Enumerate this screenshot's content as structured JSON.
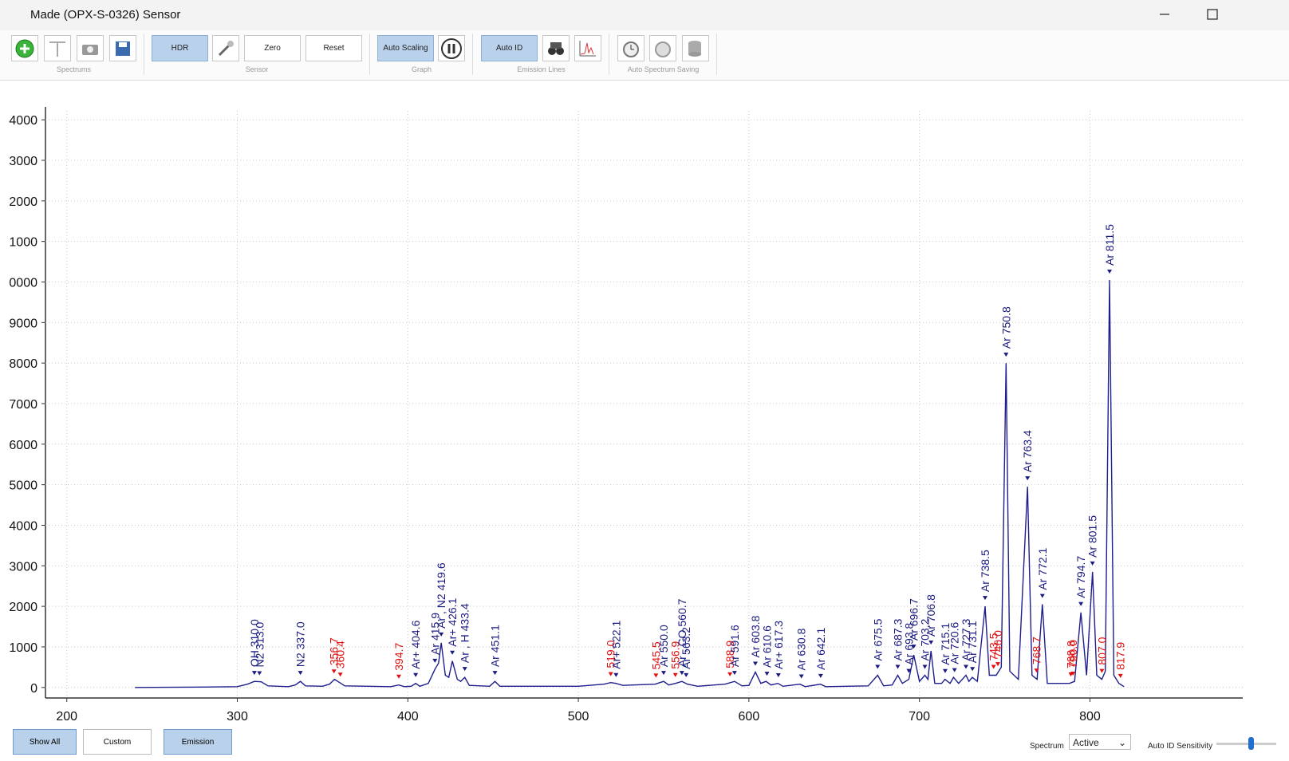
{
  "window": {
    "title": "Made (OPX-S-0326) Sensor"
  },
  "toolbar": {
    "buttons": [
      "HDR",
      "Zero",
      "Reset",
      "Auto Scaling",
      "Auto ID"
    ],
    "groups": [
      "Spectrums",
      "Sensor",
      "Graph",
      "Emission Lines",
      "Auto Spectrum Saving"
    ]
  },
  "bottom": {
    "buttons": [
      "Show All",
      "Custom",
      "Emission"
    ],
    "spectrum_label": "Spectrum",
    "spectrum_value": "Active",
    "sensitivity_label": "Auto ID Sensitivity"
  },
  "chart_data": {
    "type": "line",
    "color": "#1e1e8c",
    "grid": true,
    "xlim": [
      187.5,
      889.6
    ],
    "ylim": [
      -260,
      14220
    ],
    "xticks": [
      200,
      300,
      400,
      500,
      600,
      700,
      800
    ],
    "yticks": [
      0,
      {
        "value": 1000,
        "label": "1000"
      },
      {
        "value": 2000,
        "label": "2000"
      },
      {
        "value": 3000,
        "label": "3000"
      },
      {
        "value": 4000,
        "label": "4000"
      },
      {
        "value": 5000,
        "label": "5000"
      },
      {
        "value": 6000,
        "label": "6000"
      },
      {
        "value": 7000,
        "label": "7000"
      },
      {
        "value": 8000,
        "label": "8000"
      },
      {
        "value": 9000,
        "label": "9000"
      },
      {
        "value": 10000,
        "label": "0000"
      },
      {
        "value": 11000,
        "label": "1000"
      },
      {
        "value": 12000,
        "label": "2000"
      },
      {
        "value": 13000,
        "label": "3000"
      },
      {
        "value": 14000,
        "label": "4000"
      }
    ],
    "x": [
      240,
      280,
      300,
      306,
      310,
      314,
      318,
      330,
      334,
      337,
      340,
      350,
      354,
      357,
      360,
      363,
      390,
      394.7,
      398,
      402,
      404.6,
      407,
      412,
      415.9,
      418,
      419.6,
      422,
      424,
      426.1,
      429,
      431,
      433.4,
      436,
      448,
      451.1,
      454,
      500,
      515,
      519,
      522,
      526,
      545,
      550,
      553,
      557,
      560.7,
      564,
      570,
      586,
      591.6,
      596,
      600,
      603.8,
      607,
      610,
      613,
      617,
      620,
      630,
      633,
      642,
      645,
      670,
      675.5,
      679,
      684,
      687.3,
      690,
      693.8,
      696.7,
      700,
      703.2,
      705,
      706.8,
      709,
      713,
      715,
      718,
      720,
      723,
      727.3,
      729,
      731,
      734,
      738.5,
      741,
      745,
      748,
      750.8,
      753,
      758,
      763.4,
      766,
      769,
      772.1,
      775,
      788,
      791,
      794.7,
      798,
      801.5,
      804,
      807,
      809,
      811.5,
      814,
      817,
      820
    ],
    "values": [
      0,
      10,
      20,
      80,
      150,
      140,
      40,
      20,
      60,
      150,
      40,
      30,
      80,
      200,
      120,
      40,
      20,
      60,
      20,
      30,
      100,
      30,
      100,
      450,
      600,
      1100,
      300,
      250,
      650,
      200,
      150,
      250,
      50,
      30,
      150,
      30,
      30,
      80,
      120,
      100,
      50,
      80,
      150,
      60,
      100,
      150,
      80,
      30,
      80,
      150,
      40,
      50,
      380,
      100,
      150,
      60,
      100,
      30,
      80,
      20,
      80,
      20,
      40,
      300,
      40,
      60,
      300,
      100,
      200,
      800,
      150,
      300,
      200,
      900,
      100,
      100,
      200,
      100,
      250,
      100,
      300,
      150,
      250,
      150,
      2000,
      300,
      300,
      500,
      8000,
      400,
      200,
      4950,
      300,
      200,
      2050,
      100,
      100,
      150,
      1850,
      300,
      2850,
      300,
      200,
      400,
      10050,
      300,
      100,
      20
    ],
    "annotations": [
      {
        "x": 310,
        "text": "OH 310.0",
        "color": "#1a1a80"
      },
      {
        "x": 313,
        "text": "N2 313.0",
        "color": "#1a1a80"
      },
      {
        "x": 337,
        "text": "N2 337.0",
        "color": "#1a1a80"
      },
      {
        "x": 356.7,
        "text": "356.7",
        "color": "#e01010"
      },
      {
        "x": 360.4,
        "text": "360.4",
        "color": "#e01010"
      },
      {
        "x": 394.7,
        "text": "394.7",
        "color": "#e01010"
      },
      {
        "x": 404.6,
        "text": "Ar+ 404.6",
        "color": "#1a1a80"
      },
      {
        "x": 415.9,
        "text": "Ar 415.9",
        "color": "#1a1a80"
      },
      {
        "x": 419.6,
        "text": "Ar , N2 419.6",
        "color": "#1a1a80"
      },
      {
        "x": 426.1,
        "text": "Ar+ 426.1",
        "color": "#1a1a80"
      },
      {
        "x": 433.4,
        "text": "Ar , H 433.4",
        "color": "#1a1a80"
      },
      {
        "x": 451.1,
        "text": "Ar 451.1",
        "color": "#1a1a80"
      },
      {
        "x": 519.0,
        "text": "519.0",
        "color": "#e01010"
      },
      {
        "x": 522.1,
        "text": "Ar+ 522.1",
        "color": "#1a1a80"
      },
      {
        "x": 545.5,
        "text": "545.5",
        "color": "#e01010"
      },
      {
        "x": 550.0,
        "text": "Ar 550.0",
        "color": "#1a1a80"
      },
      {
        "x": 556.9,
        "text": "556.9",
        "color": "#e01010"
      },
      {
        "x": 560.7,
        "text": "Ar , CO 560.7",
        "color": "#1a1a80"
      },
      {
        "x": 563.2,
        "text": "Ar 563.2",
        "color": "#1a1a80"
      },
      {
        "x": 588.9,
        "text": "588.9",
        "color": "#e01010"
      },
      {
        "x": 591.6,
        "text": "Ar 591.6",
        "color": "#1a1a80"
      },
      {
        "x": 603.8,
        "text": "Ar 603.8",
        "color": "#1a1a80"
      },
      {
        "x": 610.6,
        "text": "Ar 610.6",
        "color": "#1a1a80"
      },
      {
        "x": 617.3,
        "text": "Ar+ 617.3",
        "color": "#1a1a80"
      },
      {
        "x": 630.8,
        "text": "Ar 630.8",
        "color": "#1a1a80"
      },
      {
        "x": 642.1,
        "text": "Ar 642.1",
        "color": "#1a1a80"
      },
      {
        "x": 675.5,
        "text": "Ar 675.5",
        "color": "#1a1a80"
      },
      {
        "x": 687.3,
        "text": "Ar 687.3",
        "color": "#1a1a80"
      },
      {
        "x": 693.8,
        "text": "Ar 693.8",
        "color": "#1a1a80"
      },
      {
        "x": 696.7,
        "text": "Ar 696.7",
        "color": "#1a1a80"
      },
      {
        "x": 703.2,
        "text": "Ar 703.2",
        "color": "#1a1a80"
      },
      {
        "x": 706.8,
        "text": "Ar 706.8",
        "color": "#1a1a80"
      },
      {
        "x": 715.1,
        "text": "Ar 715.1",
        "color": "#1a1a80"
      },
      {
        "x": 720.6,
        "text": "Ar 720.6",
        "color": "#1a1a80"
      },
      {
        "x": 727.3,
        "text": "Ar 727.3",
        "color": "#1a1a80"
      },
      {
        "x": 731.1,
        "text": "Ar 731.1",
        "color": "#1a1a80"
      },
      {
        "x": 738.5,
        "text": "Ar 738.5",
        "color": "#1a1a80"
      },
      {
        "x": 743.5,
        "text": "743.5",
        "color": "#e01010"
      },
      {
        "x": 746.0,
        "text": "746.0",
        "color": "#e01010"
      },
      {
        "x": 750.8,
        "text": "Ar 750.8",
        "color": "#1a1a80"
      },
      {
        "x": 763.4,
        "text": "Ar 763.4",
        "color": "#1a1a80"
      },
      {
        "x": 768.7,
        "text": "768.7",
        "color": "#e01010"
      },
      {
        "x": 772.1,
        "text": "Ar 772.1",
        "color": "#1a1a80"
      },
      {
        "x": 788.8,
        "text": "788.8",
        "color": "#e01010"
      },
      {
        "x": 790.0,
        "text": "790.0",
        "color": "#e01010"
      },
      {
        "x": 794.7,
        "text": "Ar 794.7",
        "color": "#1a1a80"
      },
      {
        "x": 801.5,
        "text": "Ar 801.5",
        "color": "#1a1a80"
      },
      {
        "x": 807.0,
        "text": "807.0",
        "color": "#e01010"
      },
      {
        "x": 811.5,
        "text": "Ar 811.5",
        "color": "#1a1a80"
      },
      {
        "x": 817.9,
        "text": "817.9",
        "color": "#e01010"
      }
    ]
  }
}
